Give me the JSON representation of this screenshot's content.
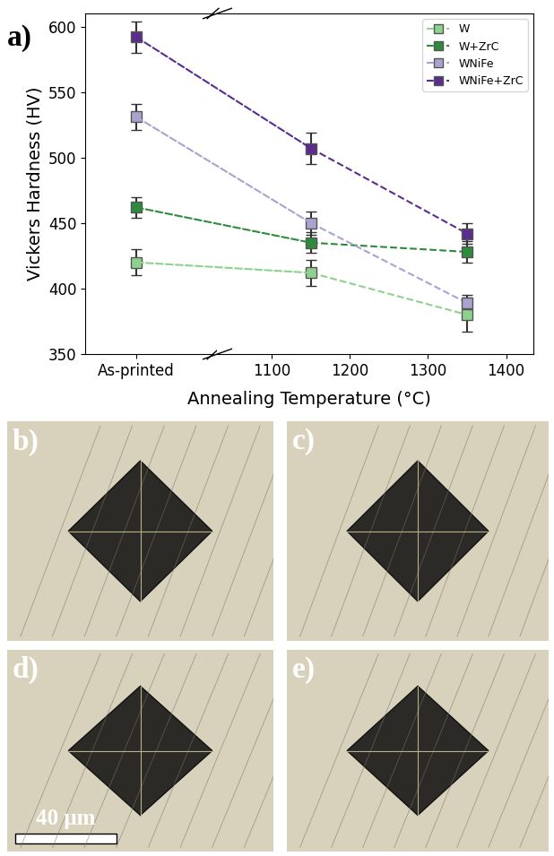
{
  "chart_data": {
    "type": "line",
    "panel_label": "a)",
    "x_label": "Annealing Temperature (°C)",
    "y_label": "Vickers Hardness (HV)",
    "x": [
      "As-printed",
      1150,
      1350
    ],
    "xlim": [
      1030,
      1435
    ],
    "xticks": [
      1100,
      1200,
      1300,
      1400
    ],
    "ylim": [
      350,
      610
    ],
    "yticks": [
      350,
      400,
      450,
      500,
      550,
      600
    ],
    "legend": "upper right",
    "marker": "square",
    "line_style": "dashed",
    "series": [
      {
        "name": "W",
        "color": "#8fd18f",
        "values": [
          420,
          412,
          380
        ],
        "errors": [
          10,
          10,
          13
        ]
      },
      {
        "name": "W+ZrC",
        "color": "#2e8b3e",
        "values": [
          462,
          435,
          428
        ],
        "errors": [
          8,
          8,
          8
        ]
      },
      {
        "name": "WNiFe",
        "color": "#aaa3d0",
        "values": [
          531,
          450,
          389
        ],
        "errors": [
          10,
          9,
          6
        ]
      },
      {
        "name": "WNiFe+ZrC",
        "color": "#5b2d8e",
        "values": [
          592,
          507,
          442
        ],
        "errors": [
          12,
          12,
          8
        ]
      }
    ]
  },
  "micrographs": {
    "labels": [
      "b)",
      "c)",
      "d)",
      "e)"
    ],
    "scale_bar": {
      "label": "40 μm",
      "panel": "d)"
    }
  }
}
